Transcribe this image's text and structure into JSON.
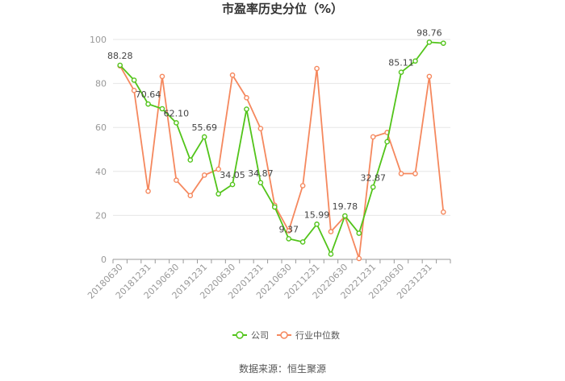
{
  "chart_data": {
    "type": "line",
    "title": "市盈率历史分位（%）",
    "xlabel": "",
    "ylabel": "",
    "ylim": [
      0,
      100
    ],
    "yticks": [
      0,
      20,
      40,
      60,
      80,
      100
    ],
    "grid": true,
    "legend_position": "bottom",
    "x": [
      "20180630",
      "20180930",
      "20181231",
      "20190331",
      "20190630",
      "20190930",
      "20191231",
      "20200331",
      "20200630",
      "20200930",
      "20201231",
      "20210331",
      "20210630",
      "20210930",
      "20211231",
      "20220331",
      "20220630",
      "20220930",
      "20221231",
      "20230331",
      "20230630",
      "20230930",
      "20231231",
      "20240331"
    ],
    "xtick_labels": [
      "20180630",
      "20181231",
      "20190630",
      "20191231",
      "20200630",
      "20201231",
      "20210630",
      "20211231",
      "20220630",
      "20221231",
      "20230630",
      "20231231"
    ],
    "series": [
      {
        "name": "公司",
        "color": "#52c41a",
        "values": [
          88.28,
          81.5,
          70.64,
          68.5,
          62.1,
          45.2,
          55.69,
          29.8,
          34.05,
          68.3,
          34.87,
          23.8,
          9.37,
          7.9,
          15.99,
          2.4,
          19.78,
          11.9,
          32.87,
          53.5,
          85.11,
          90.2,
          98.76,
          98.3
        ],
        "labels": {
          "0": "88.28",
          "2": "70.64",
          "4": "62.10",
          "6": "55.69",
          "8": "34.05",
          "10": "34.87",
          "12": "9.37",
          "14": "15.99",
          "16": "19.78",
          "18": "32.87",
          "20": "85.11",
          "22": "98.76"
        }
      },
      {
        "name": "行业中位数",
        "color": "#f5885e",
        "values": [
          88.0,
          76.8,
          31.0,
          83.2,
          36.0,
          29.0,
          38.3,
          41.0,
          83.8,
          73.5,
          59.5,
          24.6,
          13.0,
          33.5,
          86.8,
          12.6,
          19.6,
          0.4,
          55.7,
          57.7,
          39.0,
          39.0,
          83.2,
          21.5
        ]
      }
    ]
  },
  "source_text": "数据来源：恒生聚源"
}
